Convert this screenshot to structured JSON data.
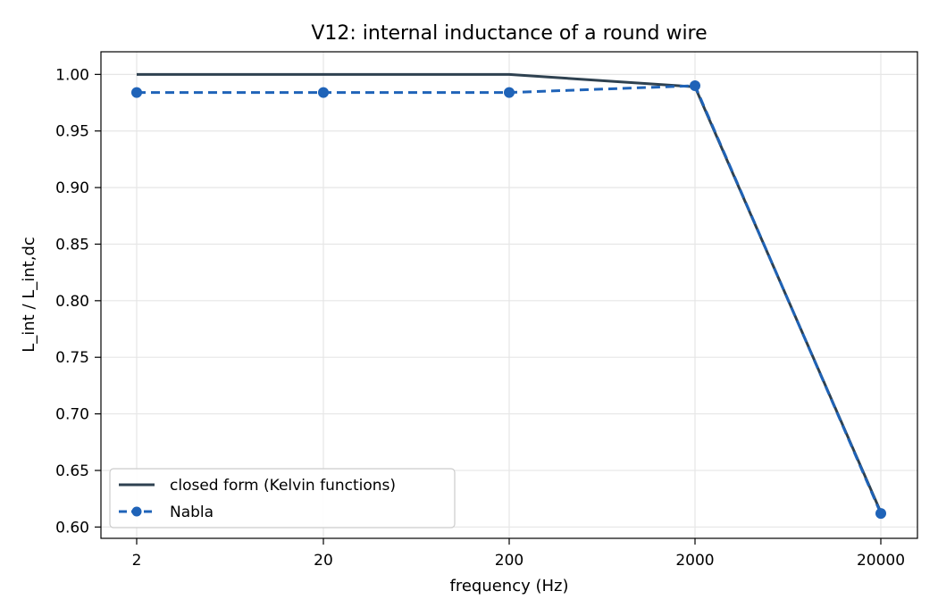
{
  "chart_data": {
    "type": "line",
    "title": "V12: internal inductance of a round wire",
    "xlabel": "frequency (Hz)",
    "ylabel": "L_int / L_int,dc",
    "categories": [
      "2",
      "20",
      "200",
      "2000",
      "20000"
    ],
    "x_scale": "categorical",
    "ylim": [
      0.59,
      1.02
    ],
    "yticks": [
      0.6,
      0.65,
      0.7,
      0.75,
      0.8,
      0.85,
      0.9,
      0.95,
      1.0
    ],
    "ytick_labels": [
      "0.60",
      "0.65",
      "0.70",
      "0.75",
      "0.80",
      "0.85",
      "0.90",
      "0.95",
      "1.00"
    ],
    "grid": true,
    "legend_position": "lower-left",
    "series": [
      {
        "name": "closed form (Kelvin functions)",
        "values": [
          1.0,
          1.0,
          1.0,
          0.989,
          0.613
        ],
        "color": "#2e4150",
        "style": "solid",
        "marker": "none"
      },
      {
        "name": "Nabla",
        "values": [
          0.984,
          0.984,
          0.984,
          0.99,
          0.612
        ],
        "color": "#1f63b8",
        "style": "dashed",
        "marker": "circle"
      }
    ]
  }
}
